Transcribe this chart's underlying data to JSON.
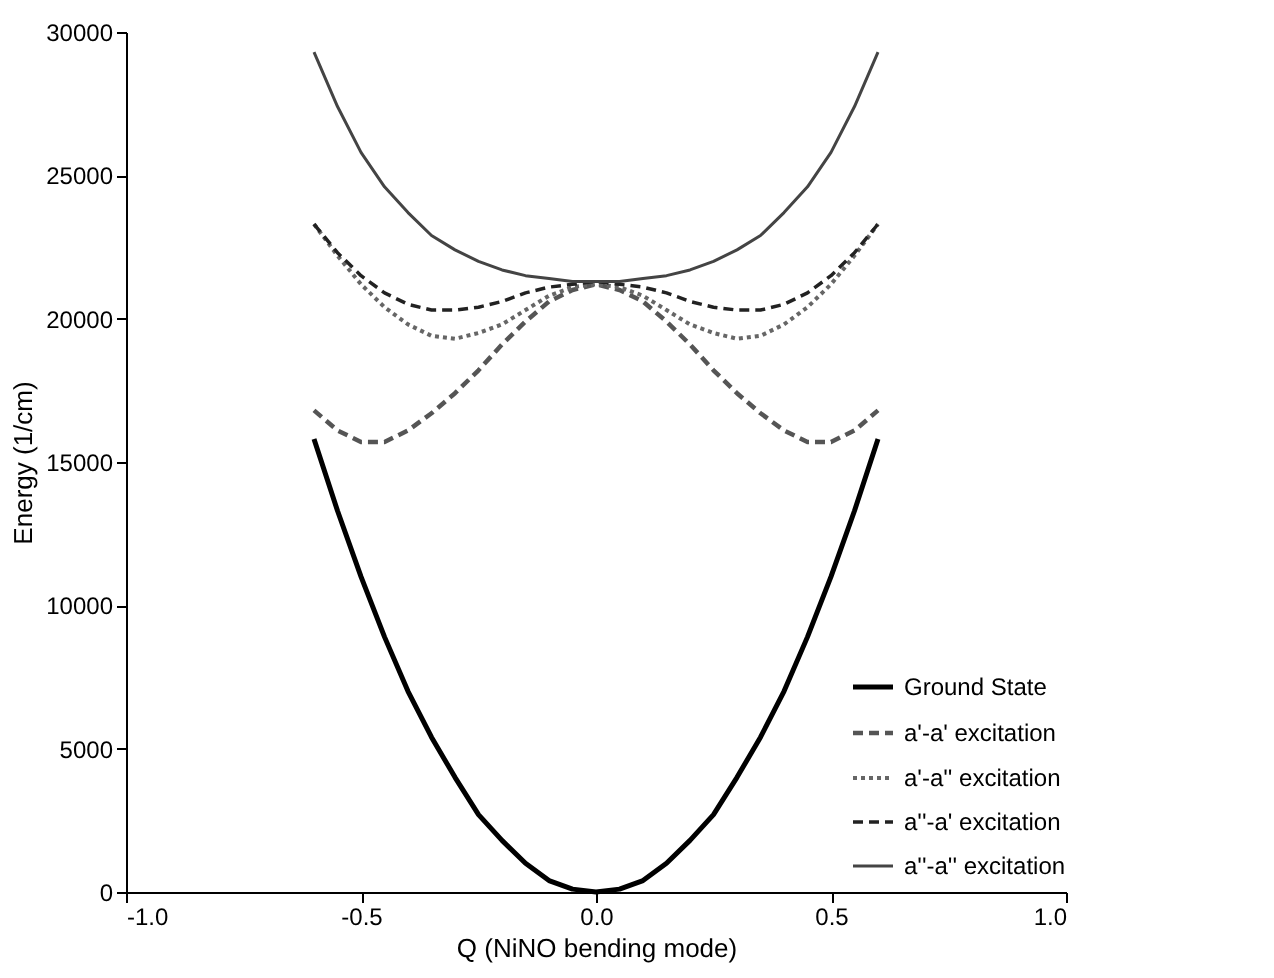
{
  "chart_data": {
    "type": "line",
    "xlabel": "Q (NiNO bending mode)",
    "ylabel": "Energy (1/cm)",
    "x": [
      -0.6,
      -0.55,
      -0.5,
      -0.45,
      -0.4,
      -0.35,
      -0.3,
      -0.25,
      -0.2,
      -0.15,
      -0.1,
      -0.05,
      0,
      0.05,
      0.1,
      0.15,
      0.2,
      0.25,
      0.3,
      0.35,
      0.4,
      0.45,
      0.5,
      0.55,
      0.6
    ],
    "series": [
      {
        "name": "Ground State",
        "color": "#000000",
        "line_style": "solid",
        "values": [
          15800,
          13300,
          11000,
          8900,
          7000,
          5400,
          4000,
          2700,
          1800,
          1000,
          400,
          100,
          0,
          100,
          400,
          1000,
          1800,
          2700,
          4000,
          5400,
          7000,
          8900,
          11000,
          13300,
          15800
        ]
      },
      {
        "name": "a'-a' excitation",
        "color": "#555555",
        "line_style": "dashed",
        "values": [
          16800,
          16100,
          15700,
          15700,
          16100,
          16700,
          17400,
          18200,
          19100,
          19900,
          20600,
          21000,
          21200,
          21000,
          20600,
          19900,
          19100,
          18200,
          17400,
          16700,
          16100,
          15700,
          15700,
          16100,
          16800
        ]
      },
      {
        "name": "a'-a'' excitation",
        "color": "#666666",
        "line_style": "dotted",
        "values": [
          23300,
          22200,
          21200,
          20400,
          19800,
          19400,
          19300,
          19500,
          19800,
          20300,
          20800,
          21100,
          21200,
          21100,
          20800,
          20300,
          19800,
          19500,
          19300,
          19400,
          19800,
          20400,
          21200,
          22200,
          23300
        ]
      },
      {
        "name": "a''-a' excitation",
        "color": "#222222",
        "line_style": "dashed",
        "values": [
          23300,
          22300,
          21500,
          20900,
          20500,
          20300,
          20300,
          20400,
          20600,
          20900,
          21100,
          21200,
          21300,
          21200,
          21100,
          20900,
          20600,
          20400,
          20300,
          20300,
          20500,
          20900,
          21500,
          22300,
          23300
        ]
      },
      {
        "name": "a''-a'' excitation",
        "color": "#444444",
        "line_style": "solid",
        "values": [
          29300,
          27400,
          25800,
          24600,
          23700,
          22900,
          22400,
          22000,
          21700,
          21500,
          21400,
          21300,
          21300,
          21300,
          21400,
          21500,
          21700,
          22000,
          22400,
          22900,
          23700,
          24600,
          25800,
          27400,
          29300
        ]
      }
    ],
    "xlim": [
      -1,
      1
    ],
    "xticks": [
      {
        "value": -1,
        "label": "-1.0"
      },
      {
        "value": -0.5,
        "label": "-0.5"
      },
      {
        "value": 0,
        "label": "0.0"
      },
      {
        "value": 0.5,
        "label": "0.5"
      },
      {
        "value": 1,
        "label": "1.0"
      }
    ],
    "ylim": [
      0,
      30000
    ],
    "yticks": [
      0,
      5000,
      10000,
      15000,
      20000,
      25000,
      30000
    ],
    "legend": "right",
    "grid": false
  }
}
